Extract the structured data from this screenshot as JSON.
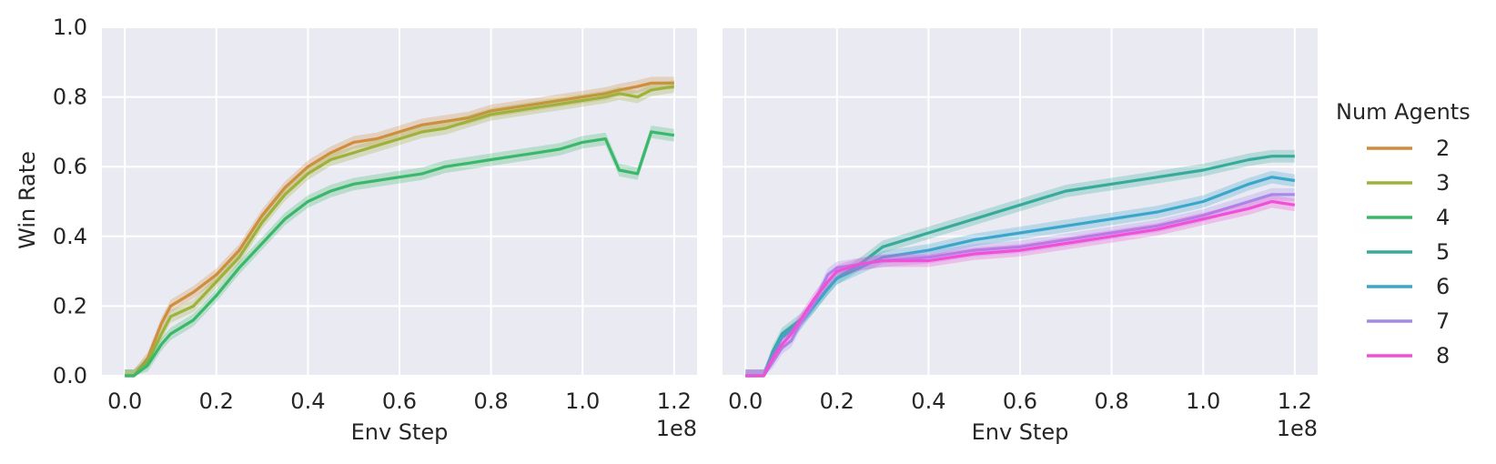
{
  "chart_data": [
    {
      "type": "line",
      "panel": "left",
      "xlabel": "Env Step",
      "ylabel": "Win Rate",
      "x_offset_label": "1e8",
      "xlim": [
        -0.05,
        1.25
      ],
      "ylim": [
        0.0,
        1.0
      ],
      "xticks": [
        "0.0",
        "0.2",
        "0.4",
        "0.6",
        "0.8",
        "1.0",
        "1.2"
      ],
      "yticks": [
        "0.0",
        "0.2",
        "0.4",
        "0.6",
        "0.8",
        "1.0"
      ],
      "grid": true,
      "background": "#eaeaf2",
      "x": [
        0.0,
        0.02,
        0.05,
        0.08,
        0.1,
        0.15,
        0.2,
        0.25,
        0.3,
        0.35,
        0.4,
        0.45,
        0.5,
        0.55,
        0.6,
        0.65,
        0.7,
        0.75,
        0.8,
        0.85,
        0.9,
        0.95,
        1.0,
        1.05,
        1.08,
        1.12,
        1.15,
        1.2
      ],
      "series": [
        {
          "name": "2",
          "color": "#d08d3e",
          "values": [
            0.0,
            0.0,
            0.05,
            0.15,
            0.2,
            0.24,
            0.29,
            0.36,
            0.46,
            0.54,
            0.6,
            0.64,
            0.67,
            0.68,
            0.7,
            0.72,
            0.73,
            0.74,
            0.76,
            0.77,
            0.78,
            0.79,
            0.8,
            0.81,
            0.82,
            0.83,
            0.84,
            0.84
          ]
        },
        {
          "name": "3",
          "color": "#9db13b",
          "values": [
            0.0,
            0.0,
            0.04,
            0.12,
            0.17,
            0.2,
            0.27,
            0.34,
            0.44,
            0.52,
            0.58,
            0.62,
            0.64,
            0.66,
            0.68,
            0.7,
            0.71,
            0.73,
            0.75,
            0.76,
            0.77,
            0.78,
            0.79,
            0.8,
            0.81,
            0.8,
            0.82,
            0.83
          ]
        },
        {
          "name": "4",
          "color": "#3ab86a",
          "values": [
            0.0,
            0.0,
            0.03,
            0.09,
            0.12,
            0.16,
            0.23,
            0.31,
            0.38,
            0.45,
            0.5,
            0.53,
            0.55,
            0.56,
            0.57,
            0.58,
            0.6,
            0.61,
            0.62,
            0.63,
            0.64,
            0.65,
            0.67,
            0.68,
            0.59,
            0.58,
            0.7,
            0.69
          ]
        }
      ]
    },
    {
      "type": "line",
      "panel": "right",
      "xlabel": "Env Step",
      "ylabel": "",
      "x_offset_label": "1e8",
      "xlim": [
        -0.05,
        1.25
      ],
      "ylim": [
        0.0,
        1.0
      ],
      "xticks": [
        "0.0",
        "0.2",
        "0.4",
        "0.6",
        "0.8",
        "1.0",
        "1.2"
      ],
      "grid": true,
      "background": "#eaeaf2",
      "x": [
        0.0,
        0.02,
        0.04,
        0.06,
        0.08,
        0.1,
        0.12,
        0.15,
        0.18,
        0.2,
        0.25,
        0.3,
        0.4,
        0.5,
        0.6,
        0.7,
        0.8,
        0.9,
        1.0,
        1.1,
        1.15,
        1.2
      ],
      "series": [
        {
          "name": "5",
          "color": "#36ab9b",
          "values": [
            0.0,
            0.0,
            0.0,
            0.07,
            0.12,
            0.14,
            0.16,
            0.2,
            0.25,
            0.28,
            0.32,
            0.37,
            0.41,
            0.45,
            0.49,
            0.53,
            0.55,
            0.57,
            0.59,
            0.62,
            0.63,
            0.63
          ]
        },
        {
          "name": "6",
          "color": "#3aa6cb",
          "values": [
            0.0,
            0.0,
            0.0,
            0.06,
            0.11,
            0.13,
            0.15,
            0.2,
            0.25,
            0.28,
            0.31,
            0.34,
            0.36,
            0.39,
            0.41,
            0.43,
            0.45,
            0.47,
            0.5,
            0.55,
            0.57,
            0.56
          ]
        },
        {
          "name": "7",
          "color": "#a48bea",
          "values": [
            0.0,
            0.0,
            0.0,
            0.04,
            0.08,
            0.1,
            0.15,
            0.21,
            0.29,
            0.31,
            0.32,
            0.33,
            0.34,
            0.36,
            0.37,
            0.39,
            0.41,
            0.43,
            0.46,
            0.5,
            0.52,
            0.52
          ]
        },
        {
          "name": "8",
          "color": "#f24fd8",
          "values": [
            0.0,
            0.0,
            0.0,
            0.05,
            0.09,
            0.12,
            0.16,
            0.22,
            0.27,
            0.3,
            0.32,
            0.33,
            0.33,
            0.35,
            0.36,
            0.38,
            0.4,
            0.42,
            0.45,
            0.48,
            0.5,
            0.49
          ]
        }
      ]
    }
  ],
  "legend": {
    "title": "Num Agents",
    "placement": "right",
    "entries": [
      {
        "label": "2",
        "color": "#d08d3e"
      },
      {
        "label": "3",
        "color": "#9db13b"
      },
      {
        "label": "4",
        "color": "#3ab86a"
      },
      {
        "label": "5",
        "color": "#36ab9b"
      },
      {
        "label": "6",
        "color": "#3aa6cb"
      },
      {
        "label": "7",
        "color": "#a48bea"
      },
      {
        "label": "8",
        "color": "#f24fd8"
      }
    ]
  }
}
